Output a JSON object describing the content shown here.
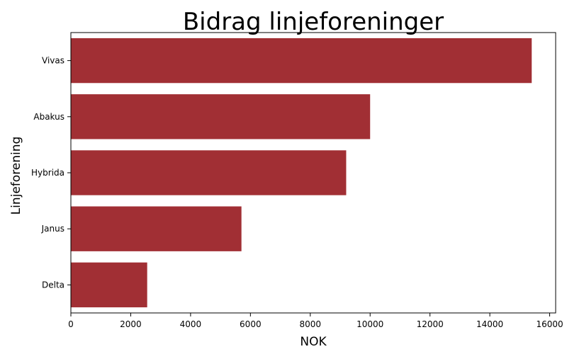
{
  "chart_data": {
    "type": "bar",
    "orientation": "horizontal",
    "title": "Bidrag linjeforeninger",
    "xlabel": "NOK",
    "ylabel": "Linjeforening",
    "categories": [
      "Vivas",
      "Abakus",
      "Hybrida",
      "Janus",
      "Delta"
    ],
    "values": [
      15400,
      10000,
      9200,
      5700,
      2550
    ],
    "xlim": [
      0,
      16200
    ],
    "xticks": [
      0,
      2000,
      4000,
      6000,
      8000,
      10000,
      12000,
      14000,
      16000
    ],
    "bar_color": "#a12f34",
    "grid": false,
    "legend": "none"
  }
}
